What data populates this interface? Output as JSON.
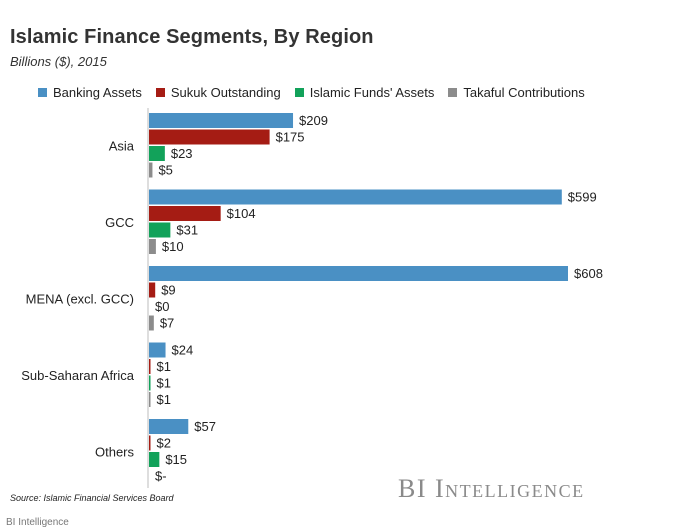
{
  "title": "Islamic Finance Segments, By Region",
  "subtitle": "Billions ($), 2015",
  "source": "Source: Islamic Financial Services Board",
  "brand": "BI Intelligence",
  "credit": "BI Intelligence",
  "colors": {
    "banking": "#4a90c4",
    "sukuk": "#a51c14",
    "funds": "#12a25a",
    "takaful": "#8c8c8c"
  },
  "chart_data": {
    "type": "bar",
    "orientation": "horizontal",
    "categories": [
      "Asia",
      "GCC",
      "MENA (excl. GCC)",
      "Sub-Saharan Africa",
      "Others"
    ],
    "series": [
      {
        "name": "Banking Assets",
        "color": "#4a90c4",
        "values": [
          209,
          599,
          608,
          24,
          57
        ],
        "labels": [
          "$209",
          "$599",
          "$608",
          "$24",
          "$57"
        ]
      },
      {
        "name": "Sukuk Outstanding",
        "color": "#a51c14",
        "values": [
          175,
          104,
          9,
          1,
          2
        ],
        "labels": [
          "$175",
          "$104",
          "$9",
          "$1",
          "$2"
        ]
      },
      {
        "name": "Islamic Funds' Assets",
        "color": "#12a25a",
        "values": [
          23,
          31,
          0,
          1,
          15
        ],
        "labels": [
          "$23",
          "$31",
          "$0",
          "$1",
          "$15"
        ]
      },
      {
        "name": "Takaful Contributions",
        "color": "#8c8c8c",
        "values": [
          5,
          10,
          7,
          1,
          0
        ],
        "labels": [
          "$5",
          "$10",
          "$7",
          "$1",
          "$-"
        ]
      }
    ],
    "xlim": [
      0,
      608
    ],
    "legend_position": "top",
    "grid": false
  }
}
